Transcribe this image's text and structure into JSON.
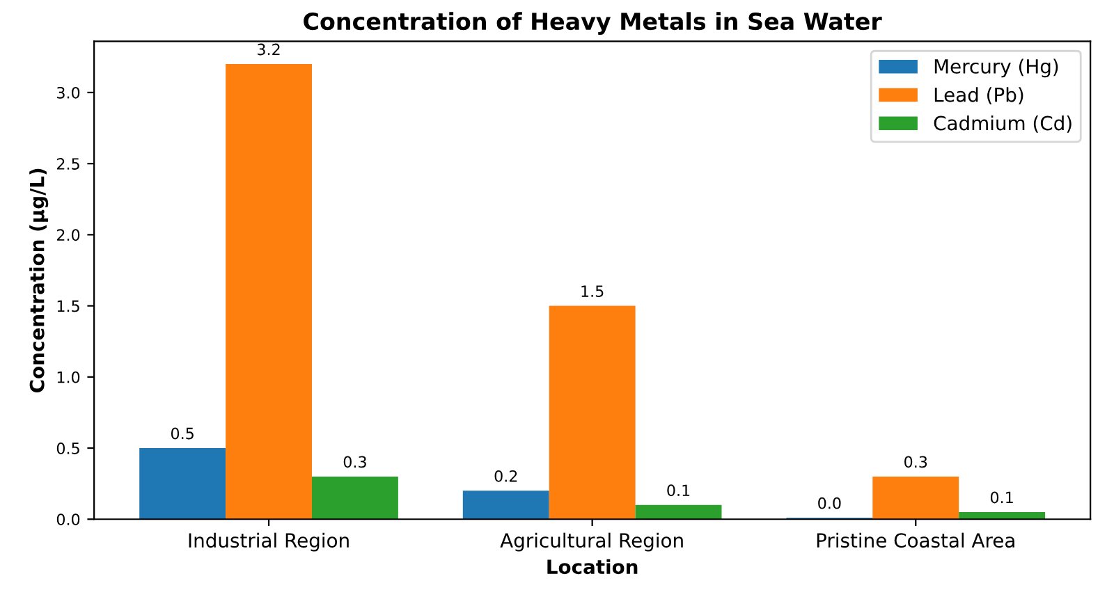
{
  "chart_data": {
    "type": "bar",
    "title": "Concentration of Heavy Metals in Sea Water",
    "xlabel": "Location",
    "ylabel": "Concentration (µg/L)",
    "categories": [
      "Industrial Region",
      "Agricultural Region",
      "Pristine Coastal Area"
    ],
    "series": [
      {
        "name": "Mercury (Hg)",
        "color": "#1f77b4",
        "values": [
          0.5,
          0.2,
          0.01
        ],
        "value_labels": [
          "0.5",
          "0.2",
          "0.0"
        ]
      },
      {
        "name": "Lead (Pb)",
        "color": "#ff7f0e",
        "values": [
          3.2,
          1.5,
          0.3
        ],
        "value_labels": [
          "3.2",
          "1.5",
          "0.3"
        ]
      },
      {
        "name": "Cadmium (Cd)",
        "color": "#2ca02c",
        "values": [
          0.3,
          0.1,
          0.05
        ],
        "value_labels": [
          "0.3",
          "0.1",
          "0.1"
        ]
      }
    ],
    "ylim": [
      0,
      3.36
    ],
    "yticks": [
      {
        "value": 0,
        "label": "0.0"
      },
      {
        "value": 0.5,
        "label": "0.5"
      },
      {
        "value": 1,
        "label": "1.0"
      },
      {
        "value": 1.5,
        "label": "1.5"
      },
      {
        "value": 2,
        "label": "2.0"
      },
      {
        "value": 2.5,
        "label": "2.5"
      },
      {
        "value": 3,
        "label": "3.0"
      }
    ],
    "legend": "top right",
    "grid": false
  }
}
